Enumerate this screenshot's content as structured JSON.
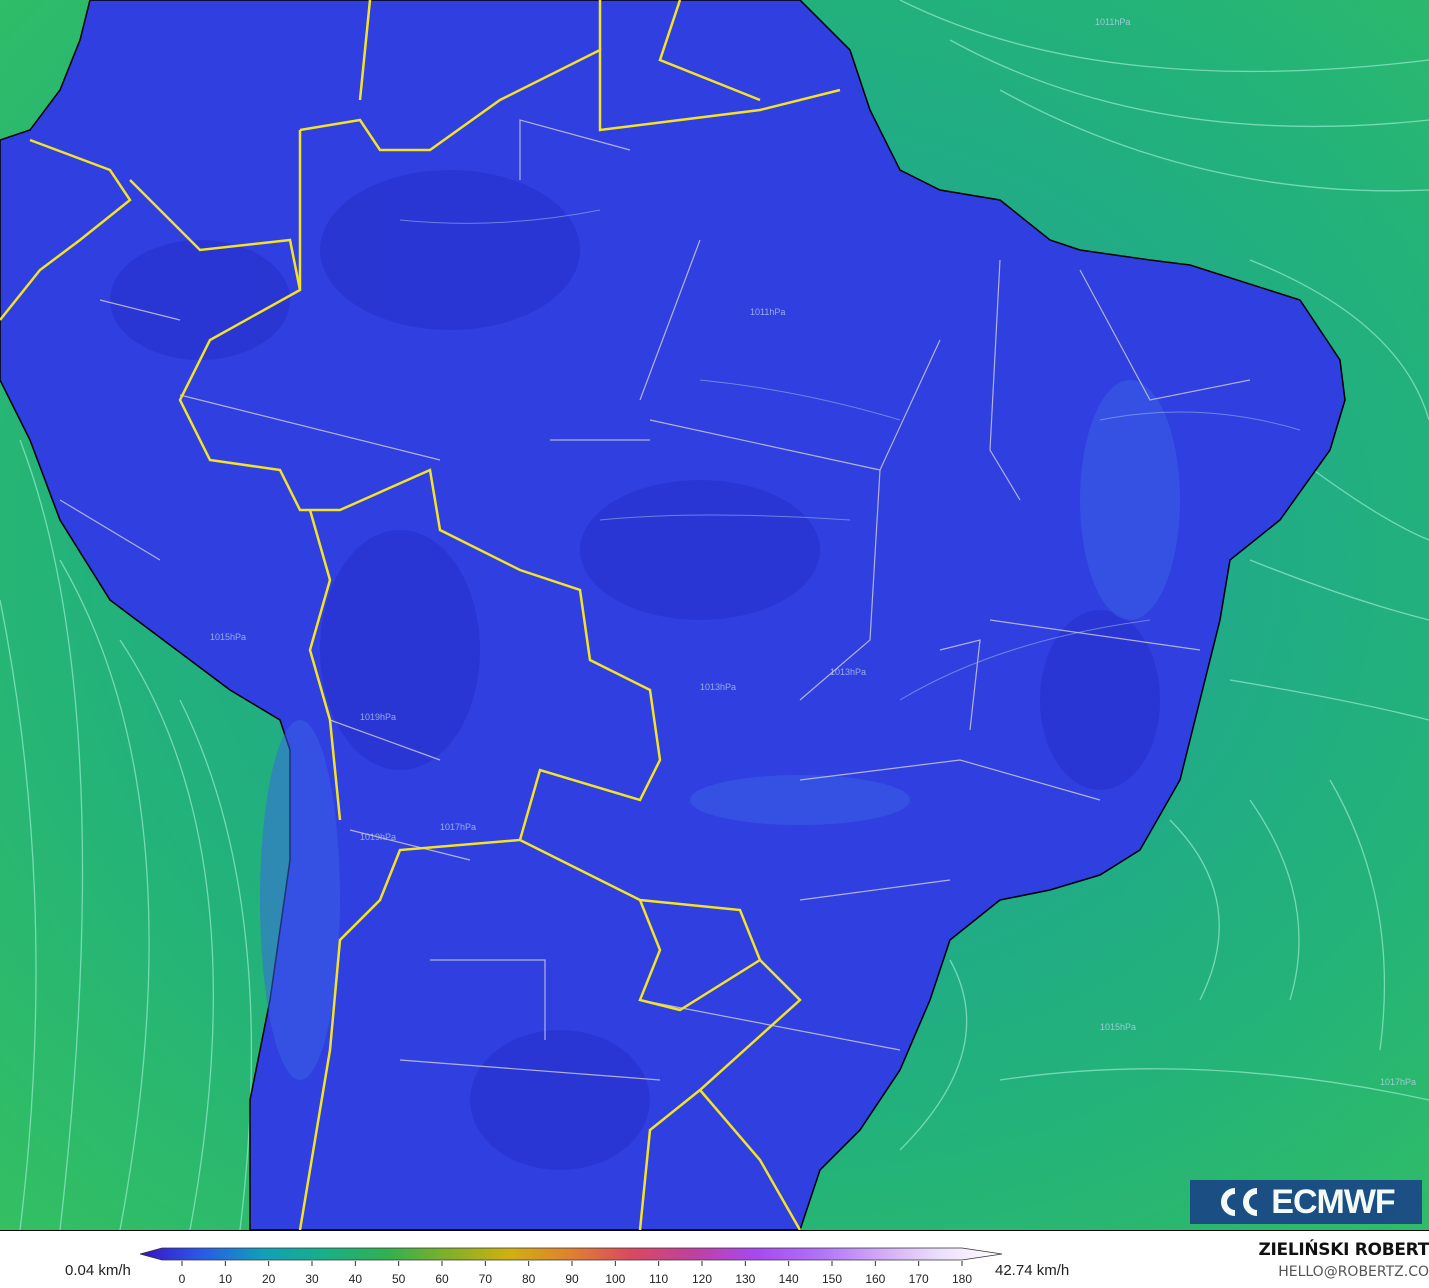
{
  "map": {
    "colors": {
      "ocean": "#22b27a",
      "land": "#2f3fe0",
      "country_border": "#f2e22a",
      "state_border": "#c8c8d8",
      "streamline": "#8fe8c8"
    },
    "isobar_labels": [
      "1011hPa",
      "1013hPa",
      "1013hPa",
      "1011hPa",
      "1019hPa",
      "1015hPa",
      "1017hPa",
      "1019hPa",
      "1017hPa",
      "1015hPa"
    ],
    "logo": "ECMWF"
  },
  "legend": {
    "min_label": "0.04 km/h",
    "max_label": "42.74 km/h",
    "ticks": [
      "0",
      "10",
      "20",
      "30",
      "40",
      "50",
      "60",
      "70",
      "80",
      "90",
      "100",
      "110",
      "120",
      "130",
      "140",
      "150",
      "160",
      "170",
      "180"
    ],
    "colors": [
      "#3a10c8",
      "#2a5ae8",
      "#10a0b8",
      "#18b088",
      "#30b050",
      "#80b028",
      "#d0b010",
      "#e08030",
      "#d84860",
      "#c040a0",
      "#a848f0",
      "#b070f8",
      "#d0a8f8",
      "#ece0fc",
      "#ffffff"
    ]
  },
  "credit": {
    "name": "ZIELIŃSKI ROBERT",
    "email": "HELLO@ROBERTZ.CO"
  }
}
